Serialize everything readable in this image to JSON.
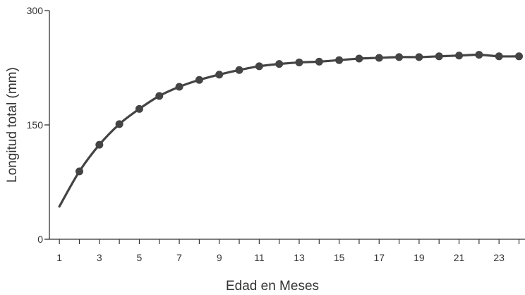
{
  "chart_data": {
    "type": "line",
    "title": "",
    "xlabel": "Edad en Meses",
    "ylabel": "Longitud total (mm)",
    "xlim": [
      0.5,
      24.3
    ],
    "ylim": [
      0,
      300
    ],
    "x_ticks": [
      1,
      3,
      5,
      7,
      9,
      11,
      13,
      15,
      17,
      19,
      21,
      23
    ],
    "y_ticks": [
      0,
      150,
      300
    ],
    "grid": false,
    "legend": "none",
    "series": [
      {
        "line_color": "#444444",
        "marker_color": "#444444",
        "curve_points": [
          [
            1,
            43
          ],
          [
            2,
            89
          ],
          [
            3,
            124
          ],
          [
            4,
            151
          ],
          [
            5,
            171
          ],
          [
            6,
            188
          ],
          [
            7,
            200
          ],
          [
            8,
            209
          ],
          [
            9,
            216
          ],
          [
            10,
            222
          ],
          [
            11,
            227
          ],
          [
            12,
            230
          ],
          [
            13,
            232
          ],
          [
            14,
            233
          ],
          [
            15,
            235
          ],
          [
            16,
            237
          ],
          [
            17,
            238
          ],
          [
            18,
            239
          ],
          [
            19,
            239
          ],
          [
            20,
            240
          ],
          [
            21,
            241
          ],
          [
            22,
            242
          ],
          [
            23,
            240
          ],
          [
            24,
            240
          ]
        ],
        "markers": [
          [
            2,
            89
          ],
          [
            3,
            124
          ],
          [
            4,
            151
          ],
          [
            5,
            171
          ],
          [
            6,
            188
          ],
          [
            7,
            200
          ],
          [
            8,
            209
          ],
          [
            9,
            216
          ],
          [
            10,
            222
          ],
          [
            11,
            227
          ],
          [
            12,
            230
          ],
          [
            13,
            232
          ],
          [
            14,
            233
          ],
          [
            15,
            235
          ],
          [
            16,
            237
          ],
          [
            17,
            238
          ],
          [
            18,
            239
          ],
          [
            19,
            239
          ],
          [
            20,
            240
          ],
          [
            21,
            241
          ],
          [
            22,
            242
          ],
          [
            23,
            240
          ],
          [
            24,
            240
          ]
        ]
      }
    ]
  }
}
